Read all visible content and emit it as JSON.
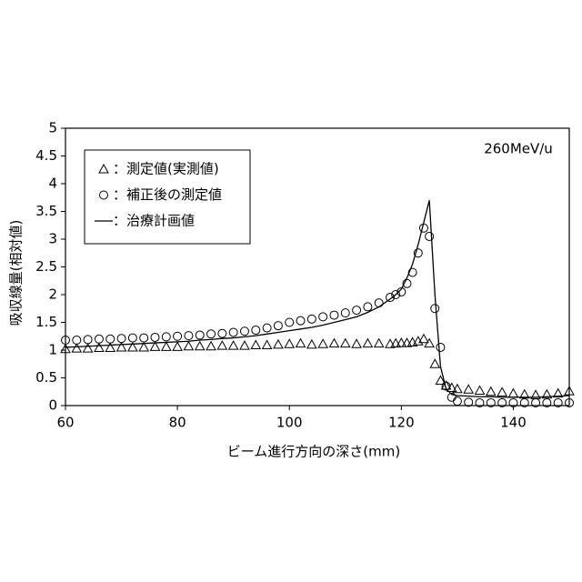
{
  "chart_data": {
    "type": "line",
    "annotation": "260MeV/u",
    "x_label": "ビーム進行方向の深さ(mm)",
    "y_label": "吸収線量(相対値)",
    "x": [
      60,
      62,
      64,
      66,
      68,
      70,
      72,
      74,
      76,
      78,
      80,
      82,
      84,
      86,
      88,
      90,
      92,
      94,
      96,
      98,
      100,
      102,
      104,
      106,
      108,
      110,
      112,
      114,
      116,
      118,
      119,
      120,
      121,
      122,
      123,
      124,
      125,
      126,
      127,
      128,
      129,
      130,
      132,
      134,
      136,
      138,
      140,
      142,
      144,
      146,
      148,
      150
    ],
    "series": [
      {
        "name": "：測定値(実測値)",
        "marker": "triangle",
        "color": "#000000",
        "values": [
          1.02,
          1.03,
          1.03,
          1.04,
          1.04,
          1.05,
          1.05,
          1.05,
          1.06,
          1.06,
          1.06,
          1.07,
          1.07,
          1.07,
          1.08,
          1.08,
          1.08,
          1.09,
          1.09,
          1.1,
          1.11,
          1.12,
          1.1,
          1.11,
          1.12,
          1.12,
          1.11,
          1.12,
          1.12,
          1.11,
          1.12,
          1.13,
          1.13,
          1.14,
          1.16,
          1.2,
          1.12,
          0.75,
          0.45,
          0.36,
          0.32,
          0.3,
          0.29,
          0.27,
          0.25,
          0.24,
          0.22,
          0.2,
          0.19,
          0.2,
          0.22,
          0.26
        ]
      },
      {
        "name": "：補正後の測定値",
        "marker": "circle",
        "color": "#000000",
        "values": [
          1.18,
          1.18,
          1.19,
          1.2,
          1.2,
          1.21,
          1.22,
          1.22,
          1.23,
          1.24,
          1.25,
          1.26,
          1.27,
          1.29,
          1.3,
          1.32,
          1.34,
          1.36,
          1.4,
          1.44,
          1.5,
          1.53,
          1.56,
          1.6,
          1.63,
          1.67,
          1.72,
          1.78,
          1.85,
          1.95,
          2.0,
          2.05,
          2.2,
          2.4,
          2.75,
          3.2,
          3.05,
          1.75,
          1.05,
          0.35,
          0.15,
          0.08,
          0.06,
          0.05,
          0.05,
          0.05,
          0.05,
          0.05,
          0.05,
          0.05,
          0.05,
          0.05
        ]
      },
      {
        "name": "：治療計画値",
        "marker": "line",
        "color": "#000000",
        "values": [
          1.05,
          1.06,
          1.07,
          1.08,
          1.09,
          1.1,
          1.11,
          1.12,
          1.13,
          1.14,
          1.15,
          1.16,
          1.18,
          1.19,
          1.21,
          1.22,
          1.24,
          1.26,
          1.29,
          1.32,
          1.35,
          1.38,
          1.41,
          1.45,
          1.5,
          1.55,
          1.6,
          1.68,
          1.78,
          1.92,
          2.0,
          2.1,
          2.3,
          2.55,
          2.9,
          3.3,
          3.7,
          2.0,
          0.7,
          0.3,
          0.2,
          0.18,
          0.17,
          0.16,
          0.16,
          0.15,
          0.15,
          0.15,
          0.15,
          0.16,
          0.17,
          0.18
        ]
      }
    ],
    "xlim": [
      60,
      150
    ],
    "xticks": [
      60,
      80,
      100,
      120,
      140
    ],
    "ylim": [
      0,
      5
    ],
    "yticks": [
      0,
      0.5,
      1,
      1.5,
      2,
      2.5,
      3,
      3.5,
      4,
      4.5,
      5
    ]
  }
}
